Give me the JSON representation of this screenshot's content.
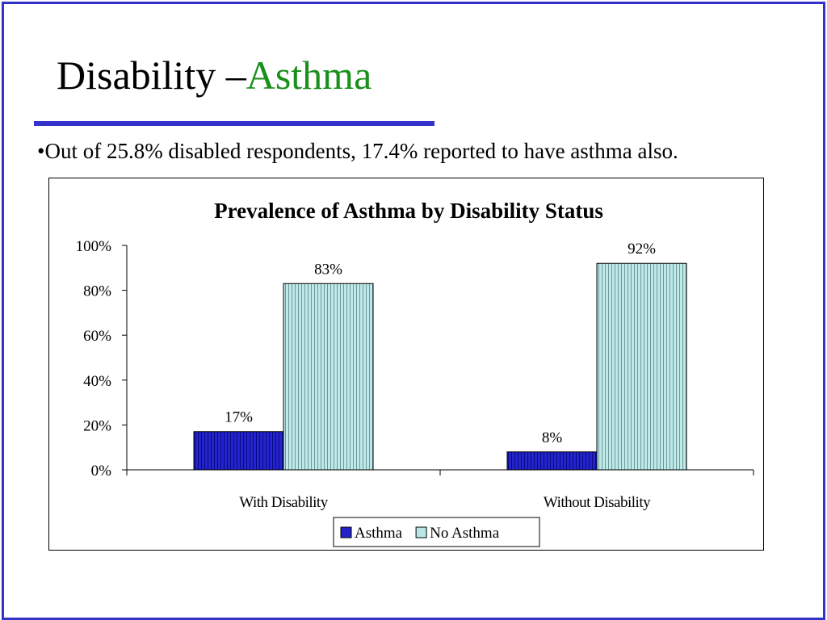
{
  "slide": {
    "title_main": "Disability –",
    "title_accent": "Asthma",
    "bullet": "•Out of 25.8% disabled respondents, 17.4% reported to have asthma also.",
    "colors": {
      "frame": "#3333cc",
      "rule": "#3333cc",
      "accent": "#1a8f1a"
    }
  },
  "chart_data": {
    "type": "bar",
    "title": "Prevalence of Asthma by Disability Status",
    "categories": [
      "With Disability",
      "Without Disability"
    ],
    "series": [
      {
        "name": "Asthma",
        "values": [
          17,
          8
        ],
        "color": "#2323c8",
        "label_suffix": "%"
      },
      {
        "name": "No Asthma",
        "values": [
          83,
          92
        ],
        "color": "#b8e6e6",
        "label_suffix": "%"
      }
    ],
    "yticks": [
      "0%",
      "20%",
      "40%",
      "60%",
      "80%",
      "100%"
    ],
    "ylim": [
      0,
      100
    ],
    "ytick_step": 20,
    "xlabel": "",
    "ylabel": "",
    "grid": false,
    "legend_position": "bottom"
  }
}
